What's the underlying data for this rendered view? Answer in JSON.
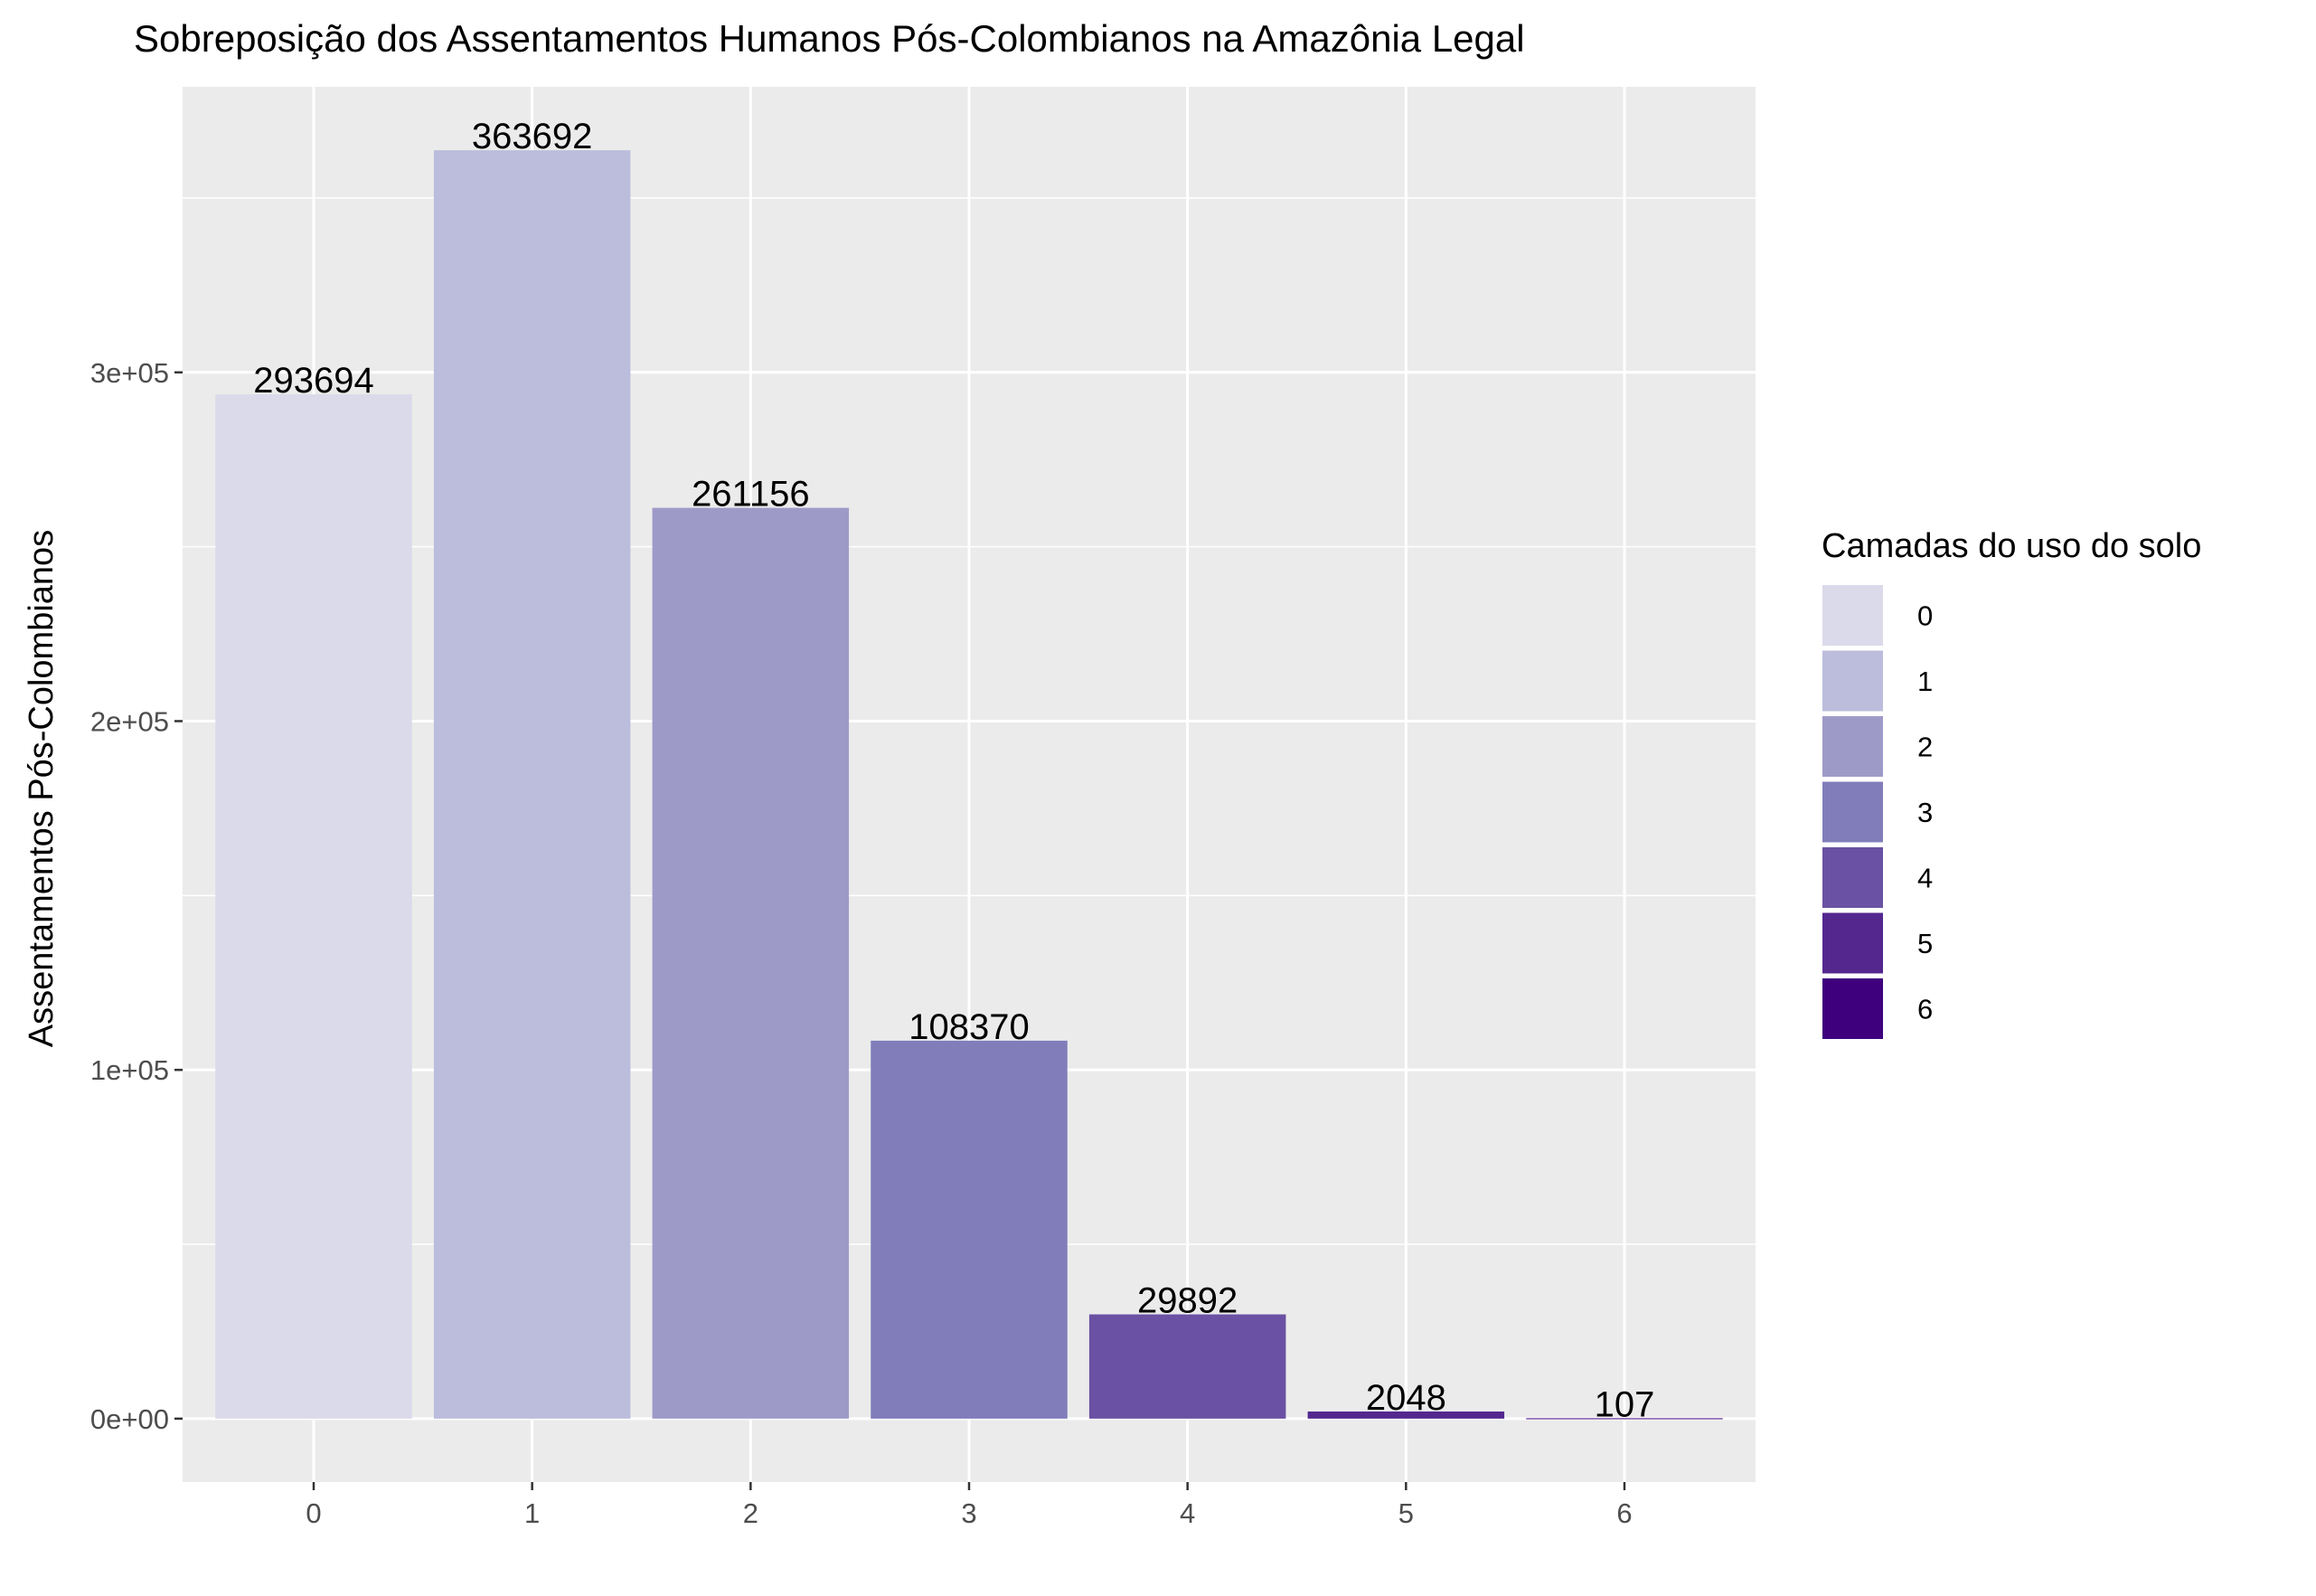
{
  "chart_data": {
    "type": "bar",
    "title": "Sobreposição dos Assentamentos Humanos Pós-Colombianos na Amazônia Legal",
    "xlabel": "",
    "ylabel": "Assentamentos Pós-Colombianos",
    "categories": [
      "0",
      "1",
      "2",
      "3",
      "4",
      "5",
      "6"
    ],
    "values": [
      293694,
      363692,
      261156,
      108370,
      29892,
      2048,
      107
    ],
    "data_labels": [
      "293694",
      "363692",
      "261156",
      "108370",
      "29892",
      "2048",
      "107"
    ],
    "colors": [
      "#dadaeb",
      "#bcbddc",
      "#9e9ac8",
      "#807dba",
      "#6a51a3",
      "#54278f",
      "#3f007d"
    ],
    "ylim": [
      -18185,
      381877
    ],
    "yticks": [
      0,
      100000,
      200000,
      300000
    ],
    "ytick_labels": [
      "0e+00",
      "1e+05",
      "2e+05",
      "3e+05"
    ],
    "grid": true,
    "panel_background": "#ebebeb",
    "grid_color": "#ffffff",
    "legend": {
      "title": "Camadas do uso do solo",
      "position": "right",
      "labels": [
        "0",
        "1",
        "2",
        "3",
        "4",
        "5",
        "6"
      ]
    }
  }
}
